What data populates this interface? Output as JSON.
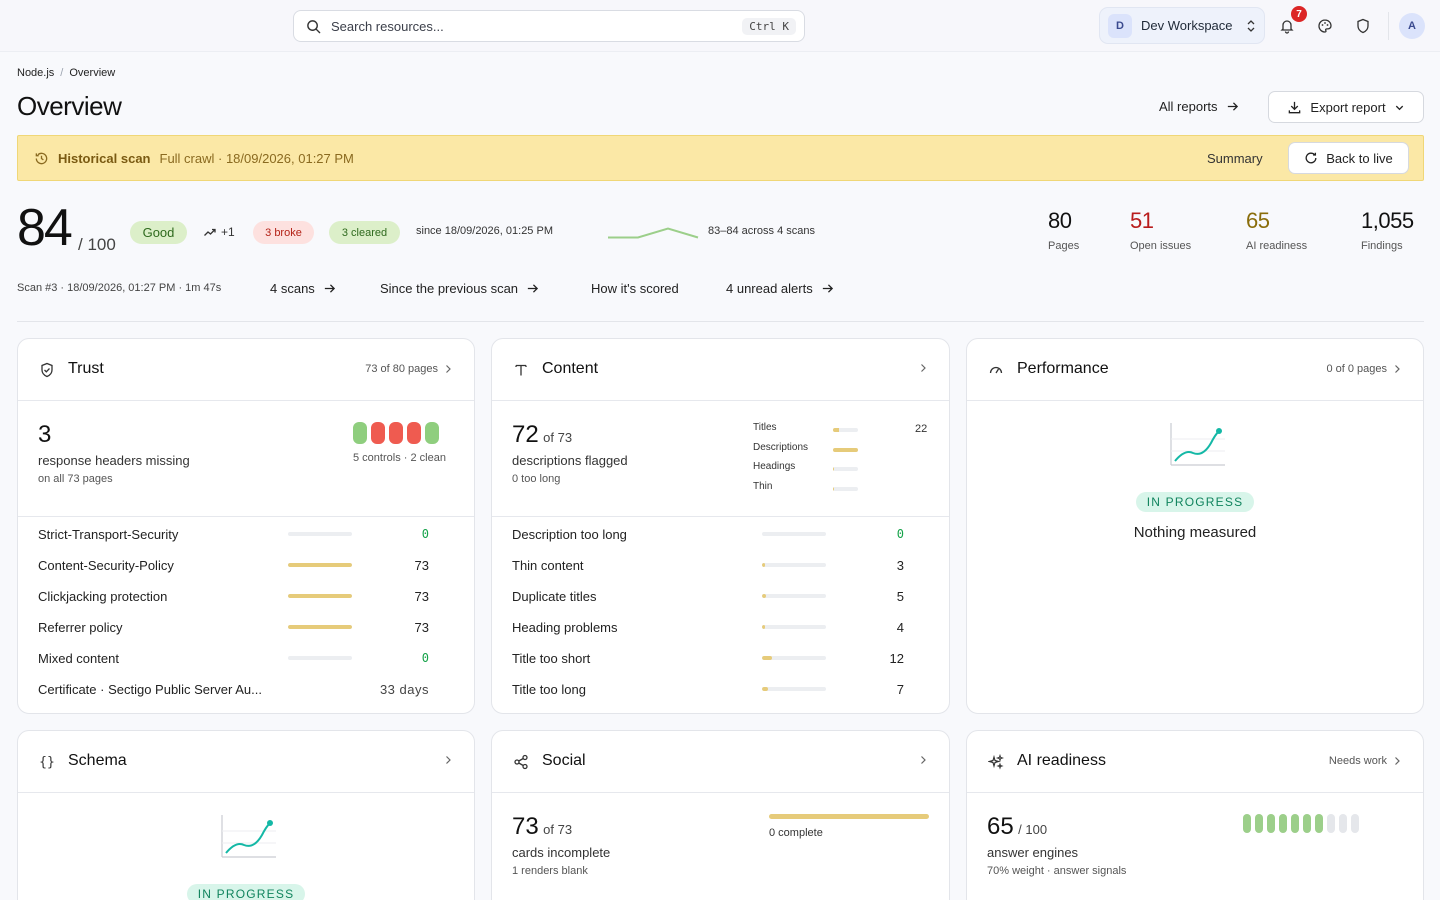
{
  "topbar": {
    "search_placeholder": "Search resources...",
    "search_shortcut": "Ctrl K",
    "workspace_initial": "D",
    "workspace_name": "Dev Workspace",
    "notification_count": "7",
    "user_initial": "A"
  },
  "breadcrumb": [
    "Node.js",
    "Overview"
  ],
  "page_title": "Overview",
  "all_reports_label": "All reports",
  "export_label": "Export report",
  "banner": {
    "title": "Historical scan",
    "meta": "Full crawl · 18/09/2026, 01:27 PM",
    "summary_label": "Summary",
    "back_label": "Back to live",
    "bg_color": "#fbe8a6"
  },
  "score": {
    "value": "84",
    "out_of": "/ 100",
    "grade": "Good",
    "delta": "+1",
    "broke": "3 broke",
    "cleared": "3 cleared",
    "since": "since 18/09/2026, 01:25 PM",
    "range": "83–84 across 4 scans",
    "trend": [
      83,
      83,
      84,
      83
    ]
  },
  "stats": [
    {
      "value": "80",
      "label": "Pages",
      "color": "#111111"
    },
    {
      "value": "51",
      "label": "Open issues",
      "color": "#b91c1c"
    },
    {
      "value": "65",
      "label": "AI readiness",
      "color": "#8a6d0b"
    },
    {
      "value": "1,055",
      "label": "Findings",
      "color": "#111111"
    }
  ],
  "scan_meta": "Scan #3 · 18/09/2026, 01:27 PM · 1m 47s",
  "links": [
    "4 scans",
    "Since the previous scan",
    "How it's scored",
    "4 unread alerts"
  ],
  "trust": {
    "title": "Trust",
    "meta": "73 of 80 pages",
    "num": "3",
    "desc": "response headers missing",
    "sub": "on all 73 pages",
    "controls_note": "5 controls · 2 clean",
    "segments": [
      "#8fce7e",
      "#ef5b50",
      "#ef5b50",
      "#ef5b50",
      "#8fce7e"
    ],
    "rows": [
      {
        "label": "Strict-Transport-Security",
        "count": "0",
        "fill": 0
      },
      {
        "label": "Content-Security-Policy",
        "count": "73",
        "fill": 1
      },
      {
        "label": "Clickjacking protection",
        "count": "73",
        "fill": 1
      },
      {
        "label": "Referrer policy",
        "count": "73",
        "fill": 1
      },
      {
        "label": "Mixed content",
        "count": "0",
        "fill": 0
      }
    ],
    "cert_label": "Certificate · Sectigo Public Server Au...",
    "cert_value": "33  days"
  },
  "content": {
    "title": "Content",
    "num": "72",
    "of": "of 73",
    "desc": "descriptions flagged",
    "sub": "0 too long",
    "mini": [
      {
        "label": "Titles",
        "fill": 0.25
      },
      {
        "label": "Descriptions",
        "fill": 1
      },
      {
        "label": "Headings",
        "fill": 0.05
      },
      {
        "label": "Thin",
        "fill": 0.05
      }
    ],
    "mini_count": "22",
    "rows": [
      {
        "label": "Description too long",
        "count": "0",
        "fill": 0
      },
      {
        "label": "Thin content",
        "count": "3",
        "fill": 0.04
      },
      {
        "label": "Duplicate titles",
        "count": "5",
        "fill": 0.07
      },
      {
        "label": "Heading problems",
        "count": "4",
        "fill": 0.05
      },
      {
        "label": "Title too short",
        "count": "12",
        "fill": 0.16
      },
      {
        "label": "Title too long",
        "count": "7",
        "fill": 0.09
      }
    ]
  },
  "performance": {
    "title": "Performance",
    "meta": "0 of 0 pages",
    "status": "IN PROGRESS",
    "empty": "Nothing measured"
  },
  "schema": {
    "title": "Schema",
    "status": "IN PROGRESS"
  },
  "social": {
    "title": "Social",
    "num": "73",
    "of": "of 73",
    "desc": "cards incomplete",
    "sub": "1 renders blank",
    "complete": "0 complete"
  },
  "ai": {
    "title": "AI readiness",
    "meta": "Needs work",
    "num": "65",
    "of": "/ 100",
    "desc": "answer engines",
    "sub": "70% weight · answer signals",
    "filled_segments": 0.65
  }
}
